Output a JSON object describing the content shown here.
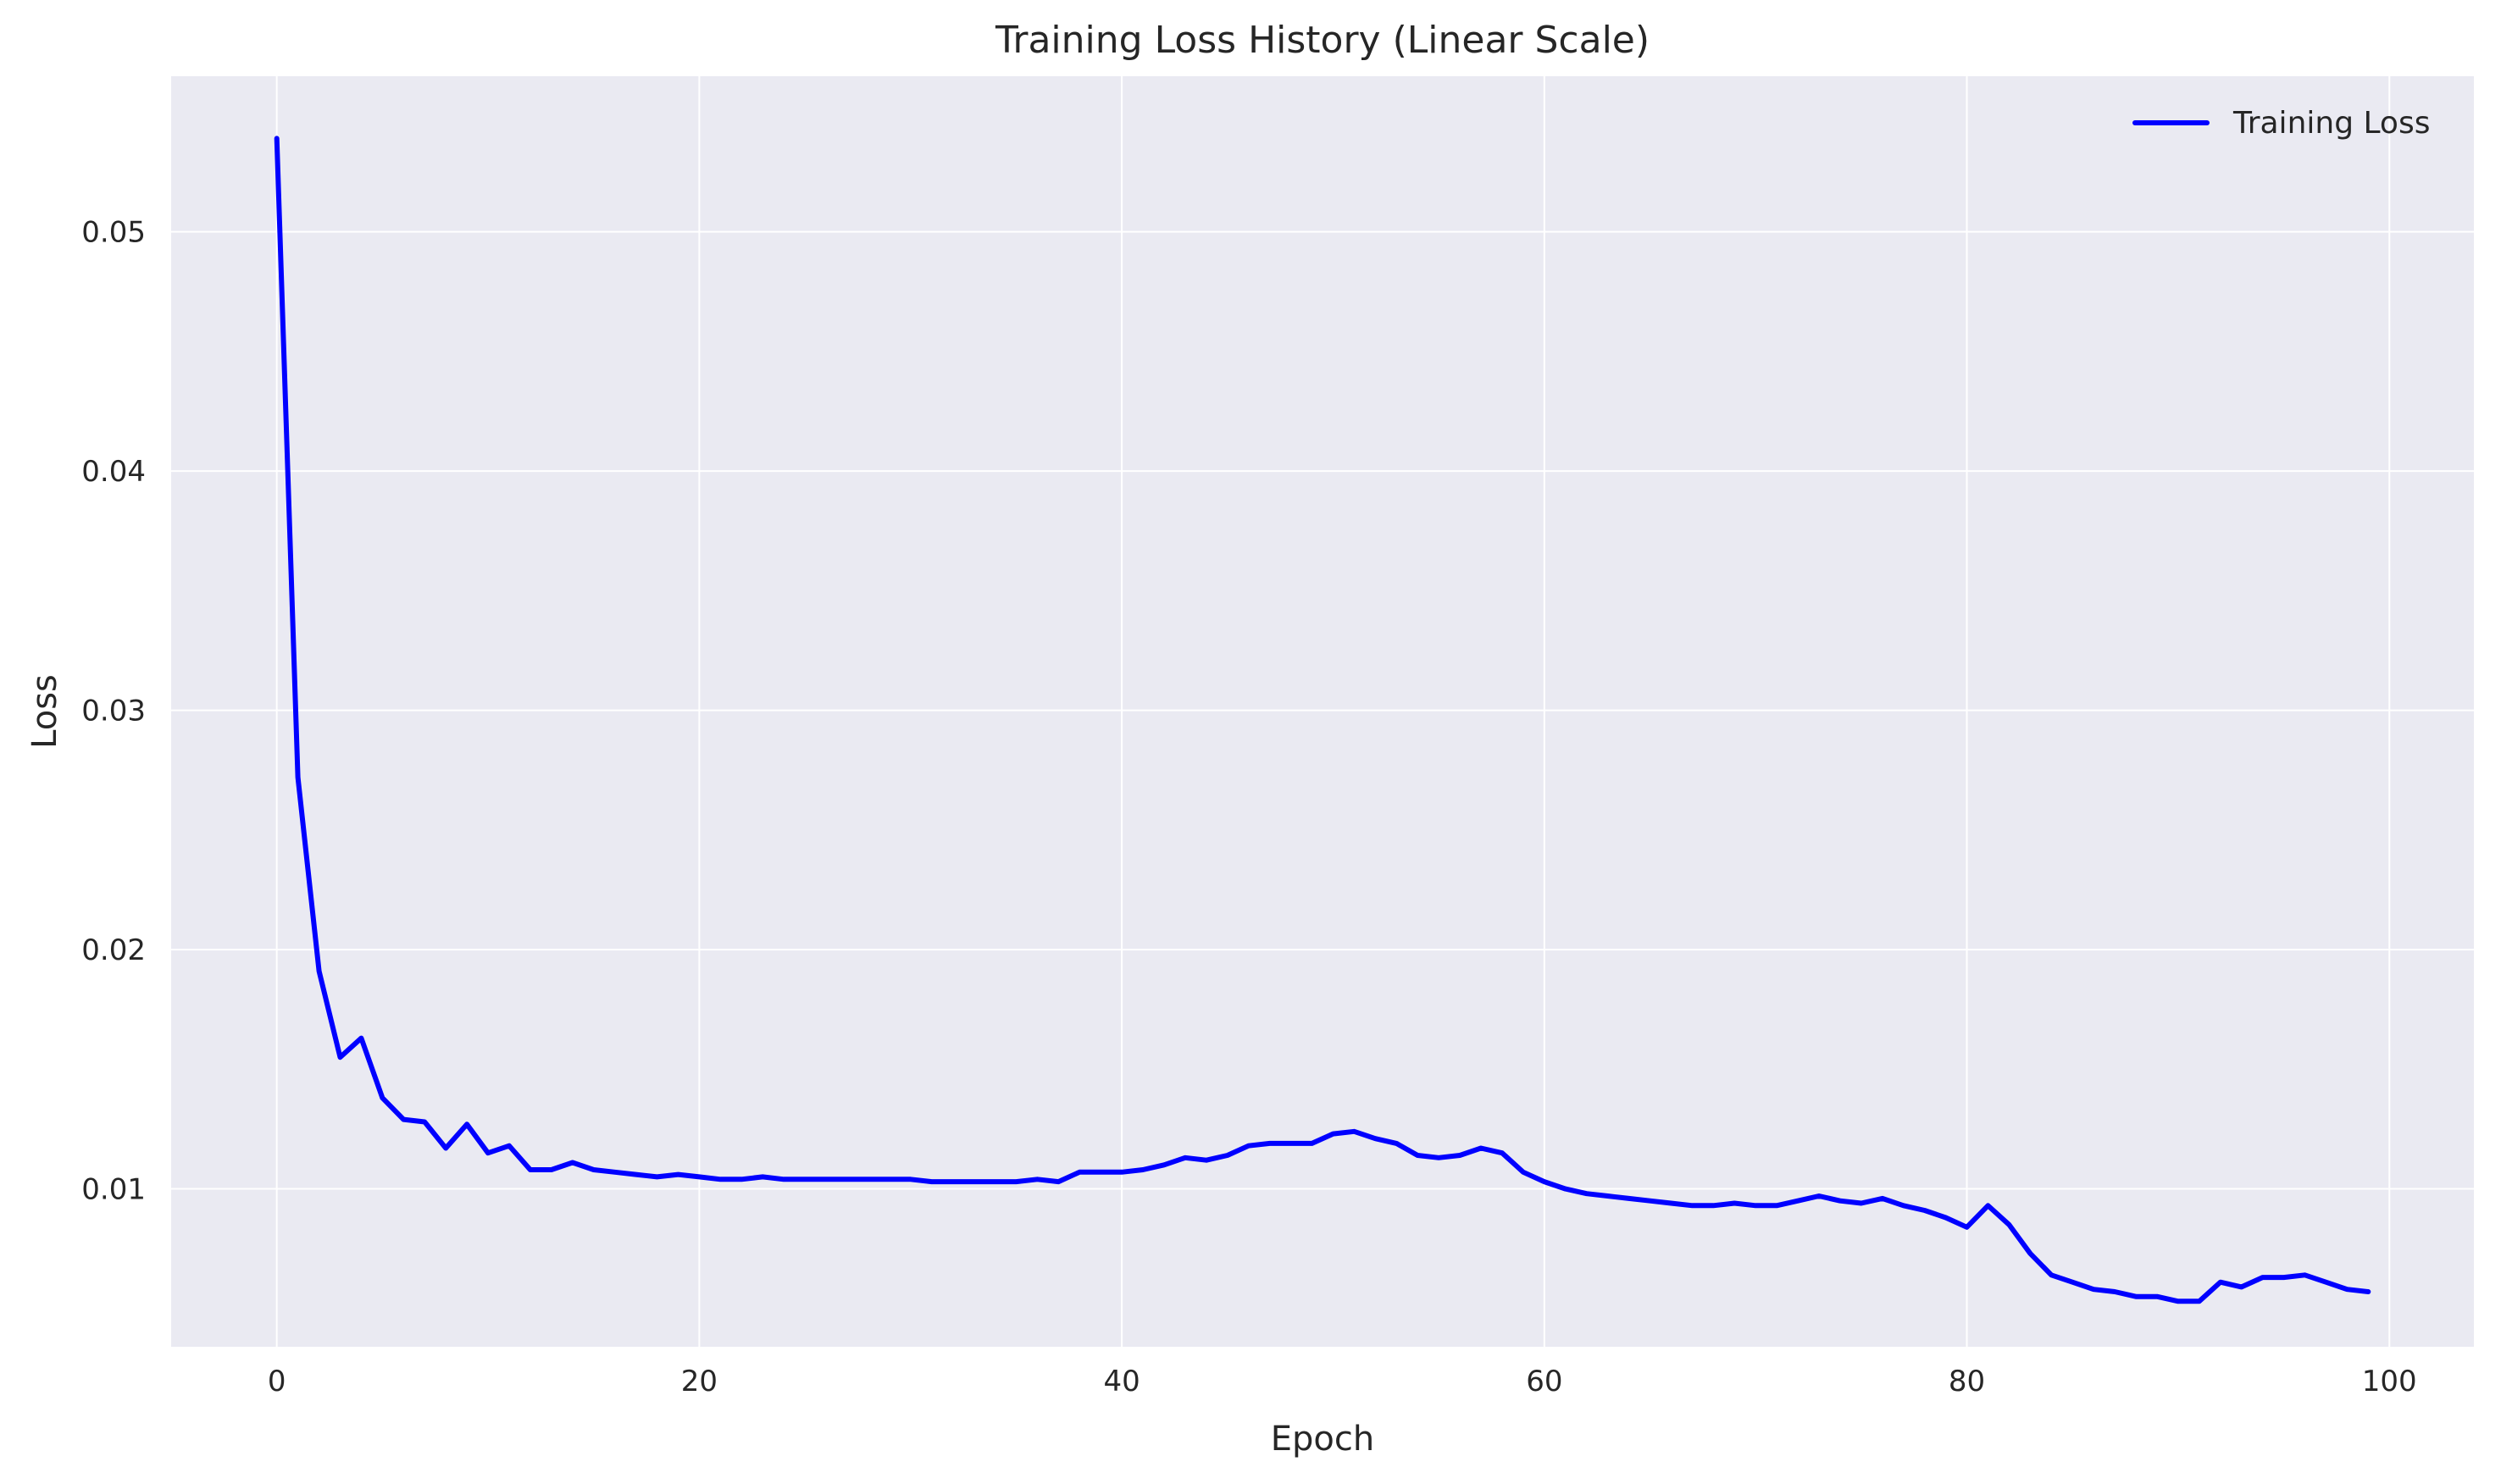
{
  "chart_data": {
    "type": "line",
    "title": "Training Loss History (Linear Scale)",
    "xlabel": "Epoch",
    "ylabel": "Loss",
    "xlim": [
      -5,
      104
    ],
    "ylim": [
      0.0034,
      0.0565
    ],
    "xticks": [
      0,
      20,
      40,
      60,
      80,
      100
    ],
    "yticks": [
      0.01,
      0.02,
      0.03,
      0.04,
      0.05
    ],
    "xtick_labels": [
      "0",
      "20",
      "40",
      "60",
      "80",
      "100"
    ],
    "ytick_labels": [
      "0.01",
      "0.02",
      "0.03",
      "0.04",
      "0.05"
    ],
    "grid": true,
    "legend_position": "top-right",
    "colors": {
      "background": "#eaeaf2",
      "grid": "#ffffff",
      "line": "#0000ff"
    },
    "series": [
      {
        "name": "Training Loss",
        "x": [
          0,
          1,
          2,
          3,
          4,
          5,
          6,
          7,
          8,
          9,
          10,
          11,
          12,
          13,
          14,
          15,
          16,
          17,
          18,
          19,
          20,
          21,
          22,
          23,
          24,
          25,
          26,
          27,
          28,
          29,
          30,
          31,
          32,
          33,
          34,
          35,
          36,
          37,
          38,
          39,
          40,
          41,
          42,
          43,
          44,
          45,
          46,
          47,
          48,
          49,
          50,
          51,
          52,
          53,
          54,
          55,
          56,
          57,
          58,
          59,
          60,
          61,
          62,
          63,
          64,
          65,
          66,
          67,
          68,
          69,
          70,
          71,
          72,
          73,
          74,
          75,
          76,
          77,
          78,
          79,
          80,
          81,
          82,
          83,
          84,
          85,
          86,
          87,
          88,
          89,
          90,
          91,
          92,
          93,
          94,
          95,
          96,
          97,
          98,
          99
        ],
        "values": [
          0.0539,
          0.0272,
          0.0191,
          0.0155,
          0.0163,
          0.0138,
          0.0129,
          0.0128,
          0.0117,
          0.0127,
          0.0115,
          0.0118,
          0.0108,
          0.0108,
          0.0111,
          0.0108,
          0.0107,
          0.0106,
          0.0105,
          0.0106,
          0.0105,
          0.0104,
          0.0104,
          0.0105,
          0.0104,
          0.0104,
          0.0104,
          0.0104,
          0.0104,
          0.0104,
          0.0104,
          0.0103,
          0.0103,
          0.0103,
          0.0103,
          0.0103,
          0.0104,
          0.0103,
          0.0107,
          0.0107,
          0.0107,
          0.0108,
          0.011,
          0.0113,
          0.0112,
          0.0114,
          0.0118,
          0.0119,
          0.0119,
          0.0119,
          0.0123,
          0.0124,
          0.0121,
          0.0119,
          0.0114,
          0.0113,
          0.0114,
          0.0117,
          0.0115,
          0.0107,
          0.0103,
          0.01,
          0.0098,
          0.0097,
          0.0096,
          0.0095,
          0.0094,
          0.0093,
          0.0093,
          0.0094,
          0.0093,
          0.0093,
          0.0095,
          0.0097,
          0.0095,
          0.0094,
          0.0096,
          0.0093,
          0.0091,
          0.0088,
          0.0084,
          0.0093,
          0.0085,
          0.0073,
          0.0064,
          0.0061,
          0.0058,
          0.0057,
          0.0055,
          0.0055,
          0.0053,
          0.0053,
          0.0061,
          0.0059,
          0.0063,
          0.0063,
          0.0064,
          0.0061,
          0.0058,
          0.0057
        ]
      }
    ]
  }
}
